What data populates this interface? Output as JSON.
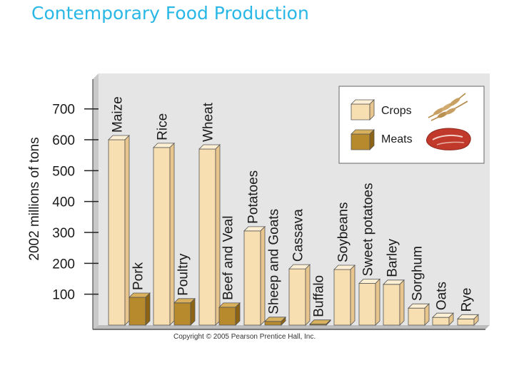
{
  "slide": {
    "title": "Contemporary Food Production"
  },
  "chart_data": {
    "type": "bar",
    "ylabel": "2002 millions of tons",
    "xlabel": "",
    "ylim": [
      0,
      800
    ],
    "yticks": [
      100,
      200,
      300,
      400,
      500,
      600,
      700
    ],
    "legend": {
      "placement": "top-right",
      "crops_label": "Crops",
      "meats_label": "Meats"
    },
    "colors": {
      "crop_front": "#f8dfb2",
      "crop_top": "#fcefd3",
      "crop_side": "#e8c58d",
      "meat_front": "#b88a2e",
      "meat_top": "#d9b15d",
      "meat_side": "#8c6414",
      "backdrop": "#e5e5e5"
    },
    "series": [
      {
        "name": "Crops",
        "group": "crop"
      },
      {
        "name": "Meats",
        "group": "meat"
      }
    ],
    "categories": [
      {
        "label": "Maize",
        "value": 600,
        "group": "crop"
      },
      {
        "label": "Pork",
        "value": 90,
        "group": "meat"
      },
      {
        "label": "Rice",
        "value": 575,
        "group": "crop"
      },
      {
        "label": "Poultry",
        "value": 72,
        "group": "meat"
      },
      {
        "label": "Wheat",
        "value": 570,
        "group": "crop"
      },
      {
        "label": "Beef and Veal",
        "value": 58,
        "group": "meat"
      },
      {
        "label": "Potatoes",
        "value": 305,
        "group": "crop"
      },
      {
        "label": "Sheep and Goats",
        "value": 12,
        "group": "meat"
      },
      {
        "label": "Cassava",
        "value": 182,
        "group": "crop"
      },
      {
        "label": "Buffalo",
        "value": 3,
        "group": "meat"
      },
      {
        "label": "Soybeans",
        "value": 180,
        "group": "crop"
      },
      {
        "label": "Sweet potatoes",
        "value": 135,
        "group": "crop"
      },
      {
        "label": "Barley",
        "value": 132,
        "group": "crop"
      },
      {
        "label": "Sorghum",
        "value": 55,
        "group": "crop"
      },
      {
        "label": "Oats",
        "value": 25,
        "group": "crop"
      },
      {
        "label": "Rye",
        "value": 20,
        "group": "crop"
      }
    ],
    "copyright": "Copyright © 2005 Pearson Prentice Hall, Inc."
  }
}
